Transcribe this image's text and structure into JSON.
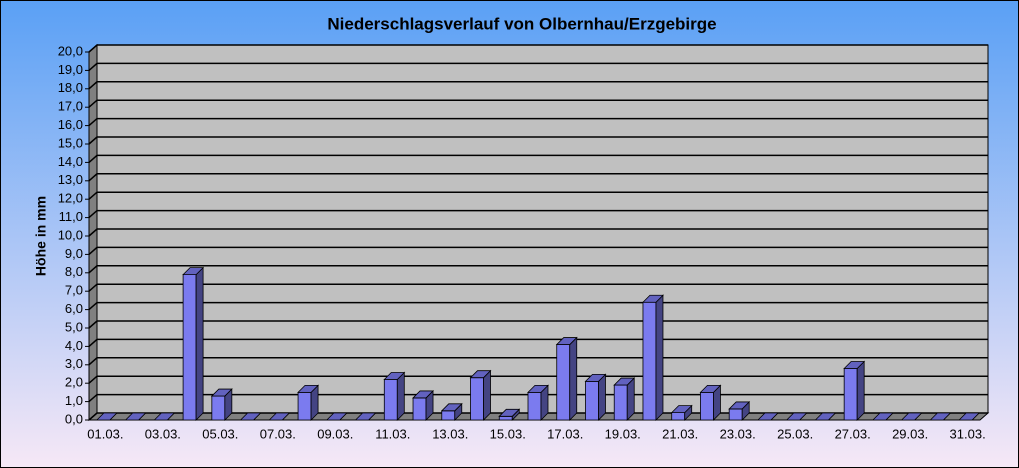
{
  "chart_data": {
    "type": "bar3d",
    "title": "Niederschlagsverlauf von Olbernhau/Erzgebirge",
    "y_label": "Höhe in  mm",
    "categories": [
      "01.03.",
      null,
      "03.03.",
      null,
      "05.03.",
      null,
      "07.03.",
      null,
      "09.03.",
      null,
      "11.03.",
      null,
      "13.03.",
      null,
      "15.03.",
      null,
      "17.03.",
      null,
      "19.03.",
      null,
      "21.03.",
      null,
      "23.03.",
      null,
      "25.03.",
      null,
      "27.03.",
      null,
      "29.03.",
      null,
      "31.03."
    ],
    "values": [
      0,
      0,
      0,
      7.9,
      1.3,
      0,
      0,
      1.5,
      0,
      0,
      2.2,
      1.2,
      0.5,
      2.3,
      0.2,
      1.5,
      4.1,
      2.1,
      1.9,
      6.4,
      0.4,
      1.5,
      0.6,
      0,
      0,
      0,
      2.8,
      0,
      0,
      0,
      0
    ],
    "color": "#7b7bef",
    "ylim": [
      0,
      20
    ],
    "yticks": [
      {
        "value": 0,
        "label": "0,0"
      },
      {
        "value": 1,
        "label": "1,0"
      },
      {
        "value": 2,
        "label": "2,0"
      },
      {
        "value": 3,
        "label": "3,0"
      },
      {
        "value": 4,
        "label": "4,0"
      },
      {
        "value": 5,
        "label": "5,0"
      },
      {
        "value": 6,
        "label": "6,0"
      },
      {
        "value": 7,
        "label": "7,0"
      },
      {
        "value": 8,
        "label": "8,0"
      },
      {
        "value": 9,
        "label": "9,0"
      },
      {
        "value": 10,
        "label": "10,0"
      },
      {
        "value": 11,
        "label": "11,0"
      },
      {
        "value": 12,
        "label": "12,0"
      },
      {
        "value": 13,
        "label": "13,0"
      },
      {
        "value": 14,
        "label": "14,0"
      },
      {
        "value": 15,
        "label": "15,0"
      },
      {
        "value": 16,
        "label": "16,0"
      },
      {
        "value": 17,
        "label": "17,0"
      },
      {
        "value": 18,
        "label": "18,0"
      },
      {
        "value": 19,
        "label": "19,0"
      },
      {
        "value": 20,
        "label": "20,0"
      }
    ],
    "grid": true
  }
}
